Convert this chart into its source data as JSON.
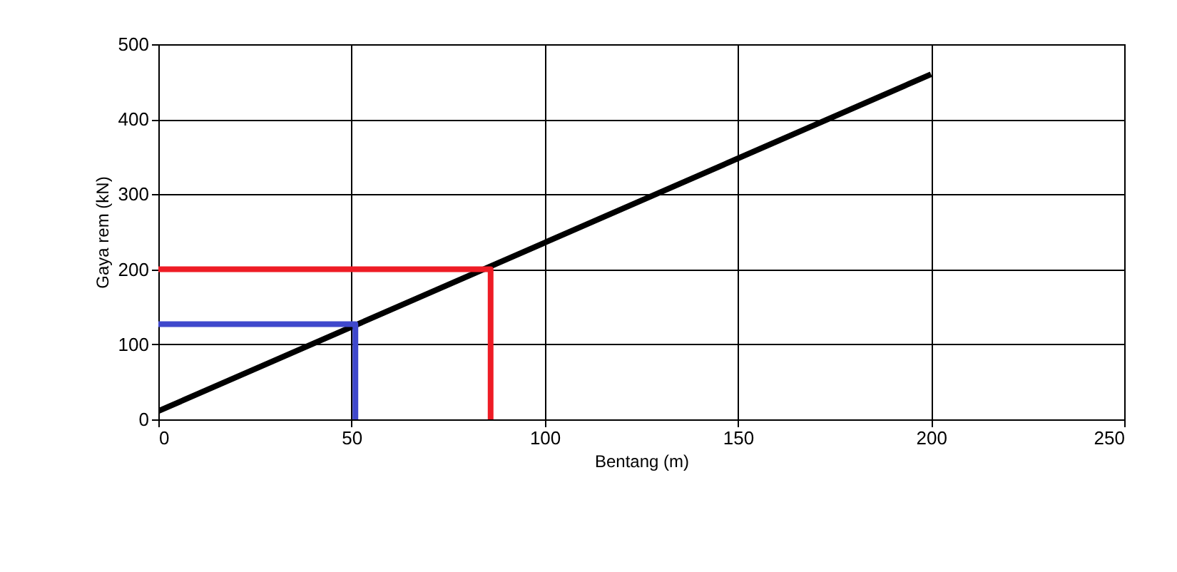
{
  "chart_data": {
    "type": "line",
    "xlabel": "Bentang (m)",
    "ylabel": "Gaya rem (kN)",
    "xlim": [
      0,
      250
    ],
    "xticks": [
      0,
      50,
      100,
      150,
      200,
      250
    ],
    "ylim": [
      0,
      500
    ],
    "yticks": [
      0,
      100,
      200,
      300,
      400,
      500
    ],
    "grid": true,
    "marker": "none",
    "line_style": "solid",
    "series": [
      {
        "color": "#000000",
        "x": [
          0,
          200
        ],
        "values": [
          11,
          460
        ]
      },
      {
        "color": "#ee1c25",
        "x": [
          0,
          86,
          86
        ],
        "values": [
          200,
          200,
          0
        ]
      },
      {
        "color": "#3f48cc",
        "x": [
          0,
          51,
          51
        ],
        "values": [
          127,
          127,
          0
        ]
      }
    ]
  }
}
